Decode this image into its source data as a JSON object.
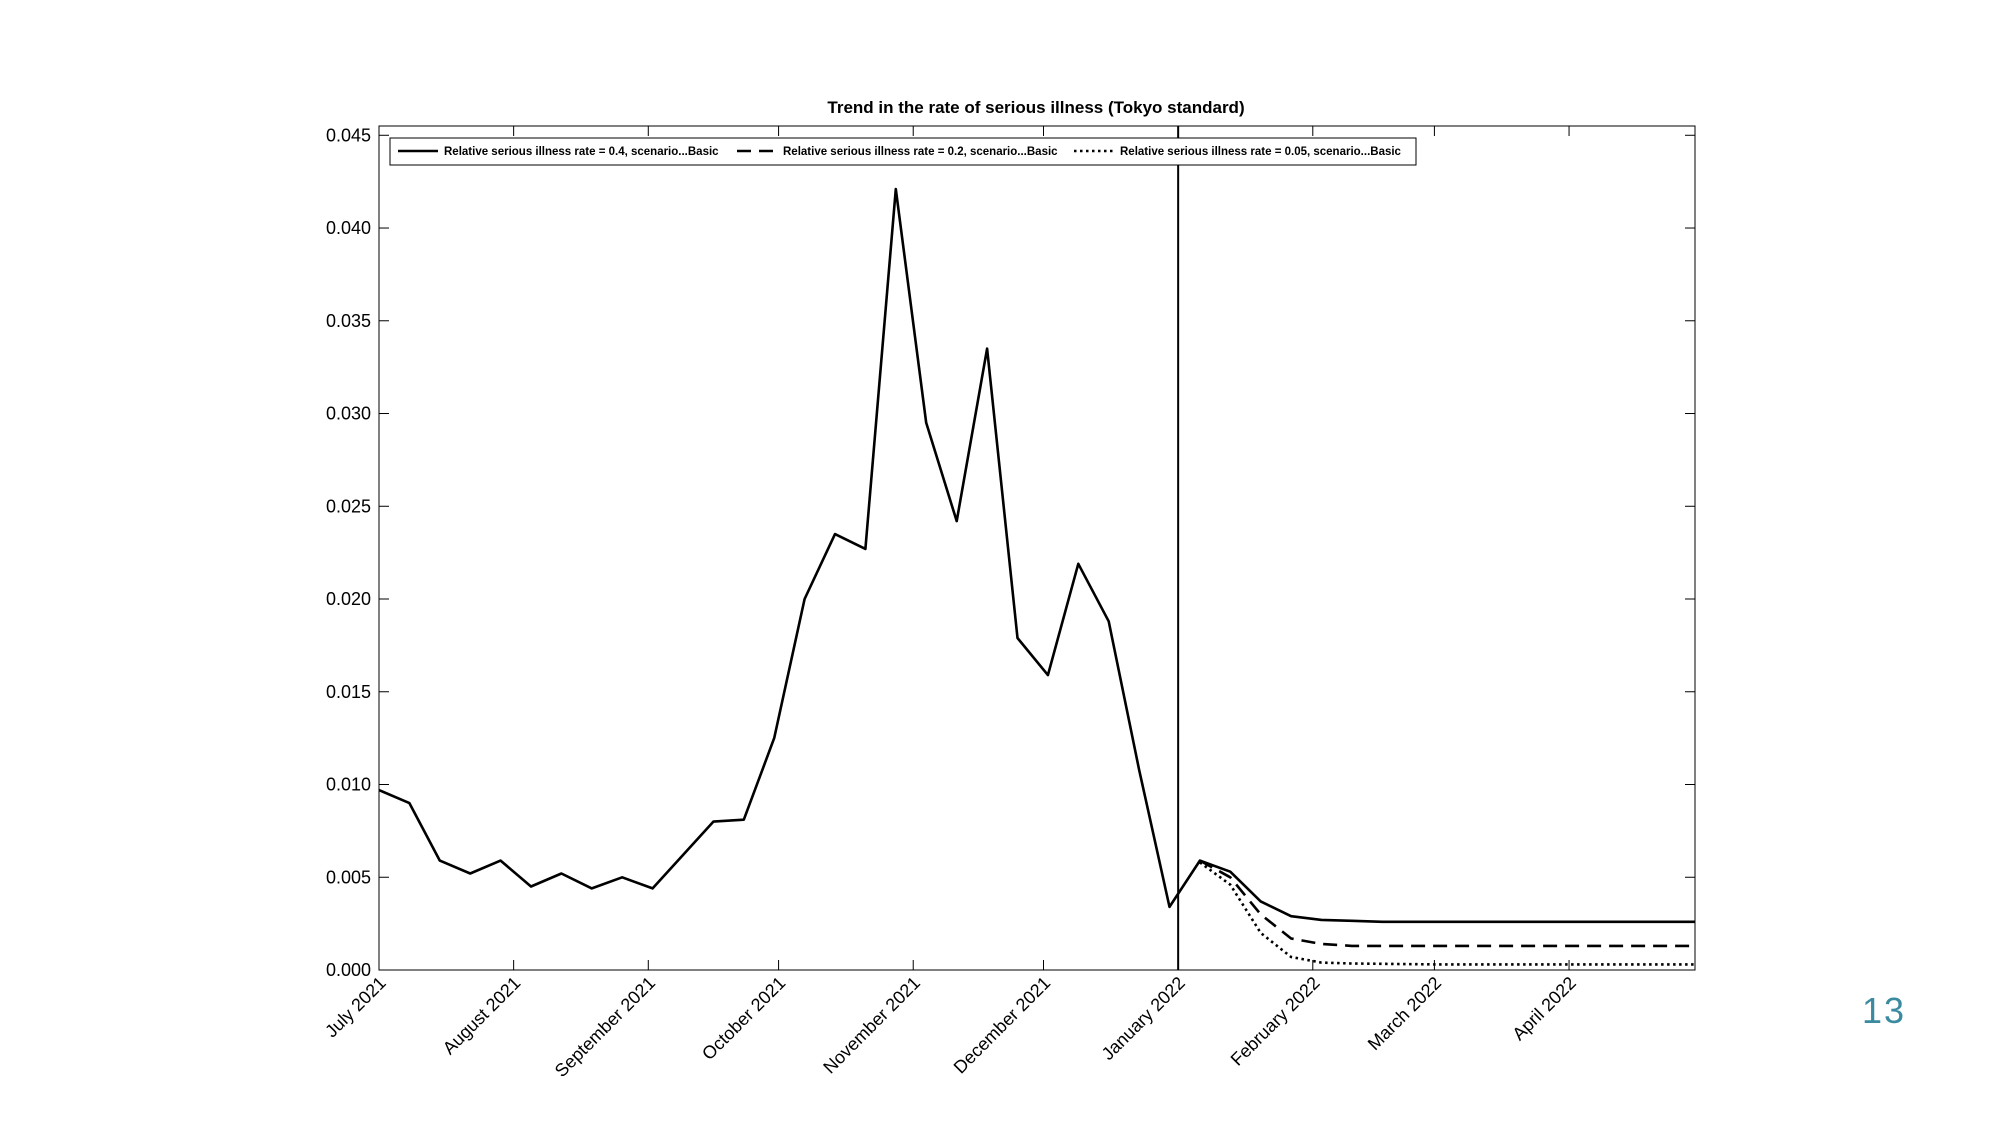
{
  "page_number": "13",
  "chart_data": {
    "type": "line",
    "title": "Trend in the rate of serious illness (Tokyo standard)",
    "xlabel": "",
    "ylabel": "",
    "x_range": [
      "2021-07-01",
      "2022-04-30"
    ],
    "ylim": [
      0,
      0.0455
    ],
    "y_ticks": [
      "0.000",
      "0.005",
      "0.010",
      "0.015",
      "0.020",
      "0.025",
      "0.030",
      "0.035",
      "0.040",
      "0.045"
    ],
    "x_ticks": [
      {
        "date": "2021-07-01",
        "label": "July 2021"
      },
      {
        "date": "2021-08-01",
        "label": "August 2021"
      },
      {
        "date": "2021-09-01",
        "label": "September 2021"
      },
      {
        "date": "2021-10-01",
        "label": "October 2021"
      },
      {
        "date": "2021-11-01",
        "label": "November 2021"
      },
      {
        "date": "2021-12-01",
        "label": "December 2021"
      },
      {
        "date": "2022-01-01",
        "label": "January 2022"
      },
      {
        "date": "2022-02-01",
        "label": "February 2022"
      },
      {
        "date": "2022-03-01",
        "label": "March 2022"
      },
      {
        "date": "2022-04-01",
        "label": "April 2022"
      }
    ],
    "vertical_line_date": "2022-01-01",
    "grid": false,
    "legend_position": "top-left",
    "series": [
      {
        "name": "Relative serious illness rate = 0.4, scenario...Basic",
        "style": "solid",
        "points": [
          [
            "2021-07-01",
            0.0097
          ],
          [
            "2021-07-08",
            0.009
          ],
          [
            "2021-07-15",
            0.0059
          ],
          [
            "2021-07-22",
            0.0052
          ],
          [
            "2021-07-29",
            0.0059
          ],
          [
            "2021-08-05",
            0.0045
          ],
          [
            "2021-08-12",
            0.0052
          ],
          [
            "2021-08-19",
            0.0044
          ],
          [
            "2021-08-26",
            0.005
          ],
          [
            "2021-09-02",
            0.0044
          ],
          [
            "2021-09-09",
            0.0062
          ],
          [
            "2021-09-16",
            0.008
          ],
          [
            "2021-09-23",
            0.0081
          ],
          [
            "2021-09-30",
            0.0125
          ],
          [
            "2021-10-07",
            0.02
          ],
          [
            "2021-10-14",
            0.0235
          ],
          [
            "2021-10-21",
            0.0227
          ],
          [
            "2021-10-28",
            0.0421
          ],
          [
            "2021-11-04",
            0.0295
          ],
          [
            "2021-11-11",
            0.0242
          ],
          [
            "2021-11-18",
            0.0335
          ],
          [
            "2021-11-25",
            0.0179
          ],
          [
            "2021-12-02",
            0.0159
          ],
          [
            "2021-12-09",
            0.0219
          ],
          [
            "2021-12-16",
            0.0188
          ],
          [
            "2021-12-23",
            0.0108
          ],
          [
            "2021-12-30",
            0.0034
          ],
          [
            "2022-01-06",
            0.0059
          ],
          [
            "2022-01-13",
            0.0053
          ],
          [
            "2022-01-20",
            0.0037
          ],
          [
            "2022-01-27",
            0.0029
          ],
          [
            "2022-02-03",
            0.0027
          ],
          [
            "2022-02-10",
            0.00265
          ],
          [
            "2022-02-17",
            0.0026
          ],
          [
            "2022-03-01",
            0.0026
          ],
          [
            "2022-04-01",
            0.0026
          ],
          [
            "2022-04-30",
            0.0026
          ]
        ]
      },
      {
        "name": "Relative serious illness rate = 0.2, scenario...Basic",
        "style": "dashed",
        "points": [
          [
            "2022-01-06",
            0.0059
          ],
          [
            "2022-01-13",
            0.005
          ],
          [
            "2022-01-20",
            0.003
          ],
          [
            "2022-01-27",
            0.0017
          ],
          [
            "2022-02-03",
            0.0014
          ],
          [
            "2022-02-10",
            0.0013
          ],
          [
            "2022-03-01",
            0.0013
          ],
          [
            "2022-04-01",
            0.0013
          ],
          [
            "2022-04-30",
            0.0013
          ]
        ]
      },
      {
        "name": "Relative serious illness rate = 0.05, scenario...Basic",
        "style": "dotted",
        "points": [
          [
            "2022-01-06",
            0.0058
          ],
          [
            "2022-01-13",
            0.0046
          ],
          [
            "2022-01-20",
            0.002
          ],
          [
            "2022-01-27",
            0.0007
          ],
          [
            "2022-02-03",
            0.0004
          ],
          [
            "2022-02-10",
            0.00035
          ],
          [
            "2022-03-01",
            0.0003
          ],
          [
            "2022-04-01",
            0.0003
          ],
          [
            "2022-04-30",
            0.0003
          ]
        ]
      }
    ]
  }
}
